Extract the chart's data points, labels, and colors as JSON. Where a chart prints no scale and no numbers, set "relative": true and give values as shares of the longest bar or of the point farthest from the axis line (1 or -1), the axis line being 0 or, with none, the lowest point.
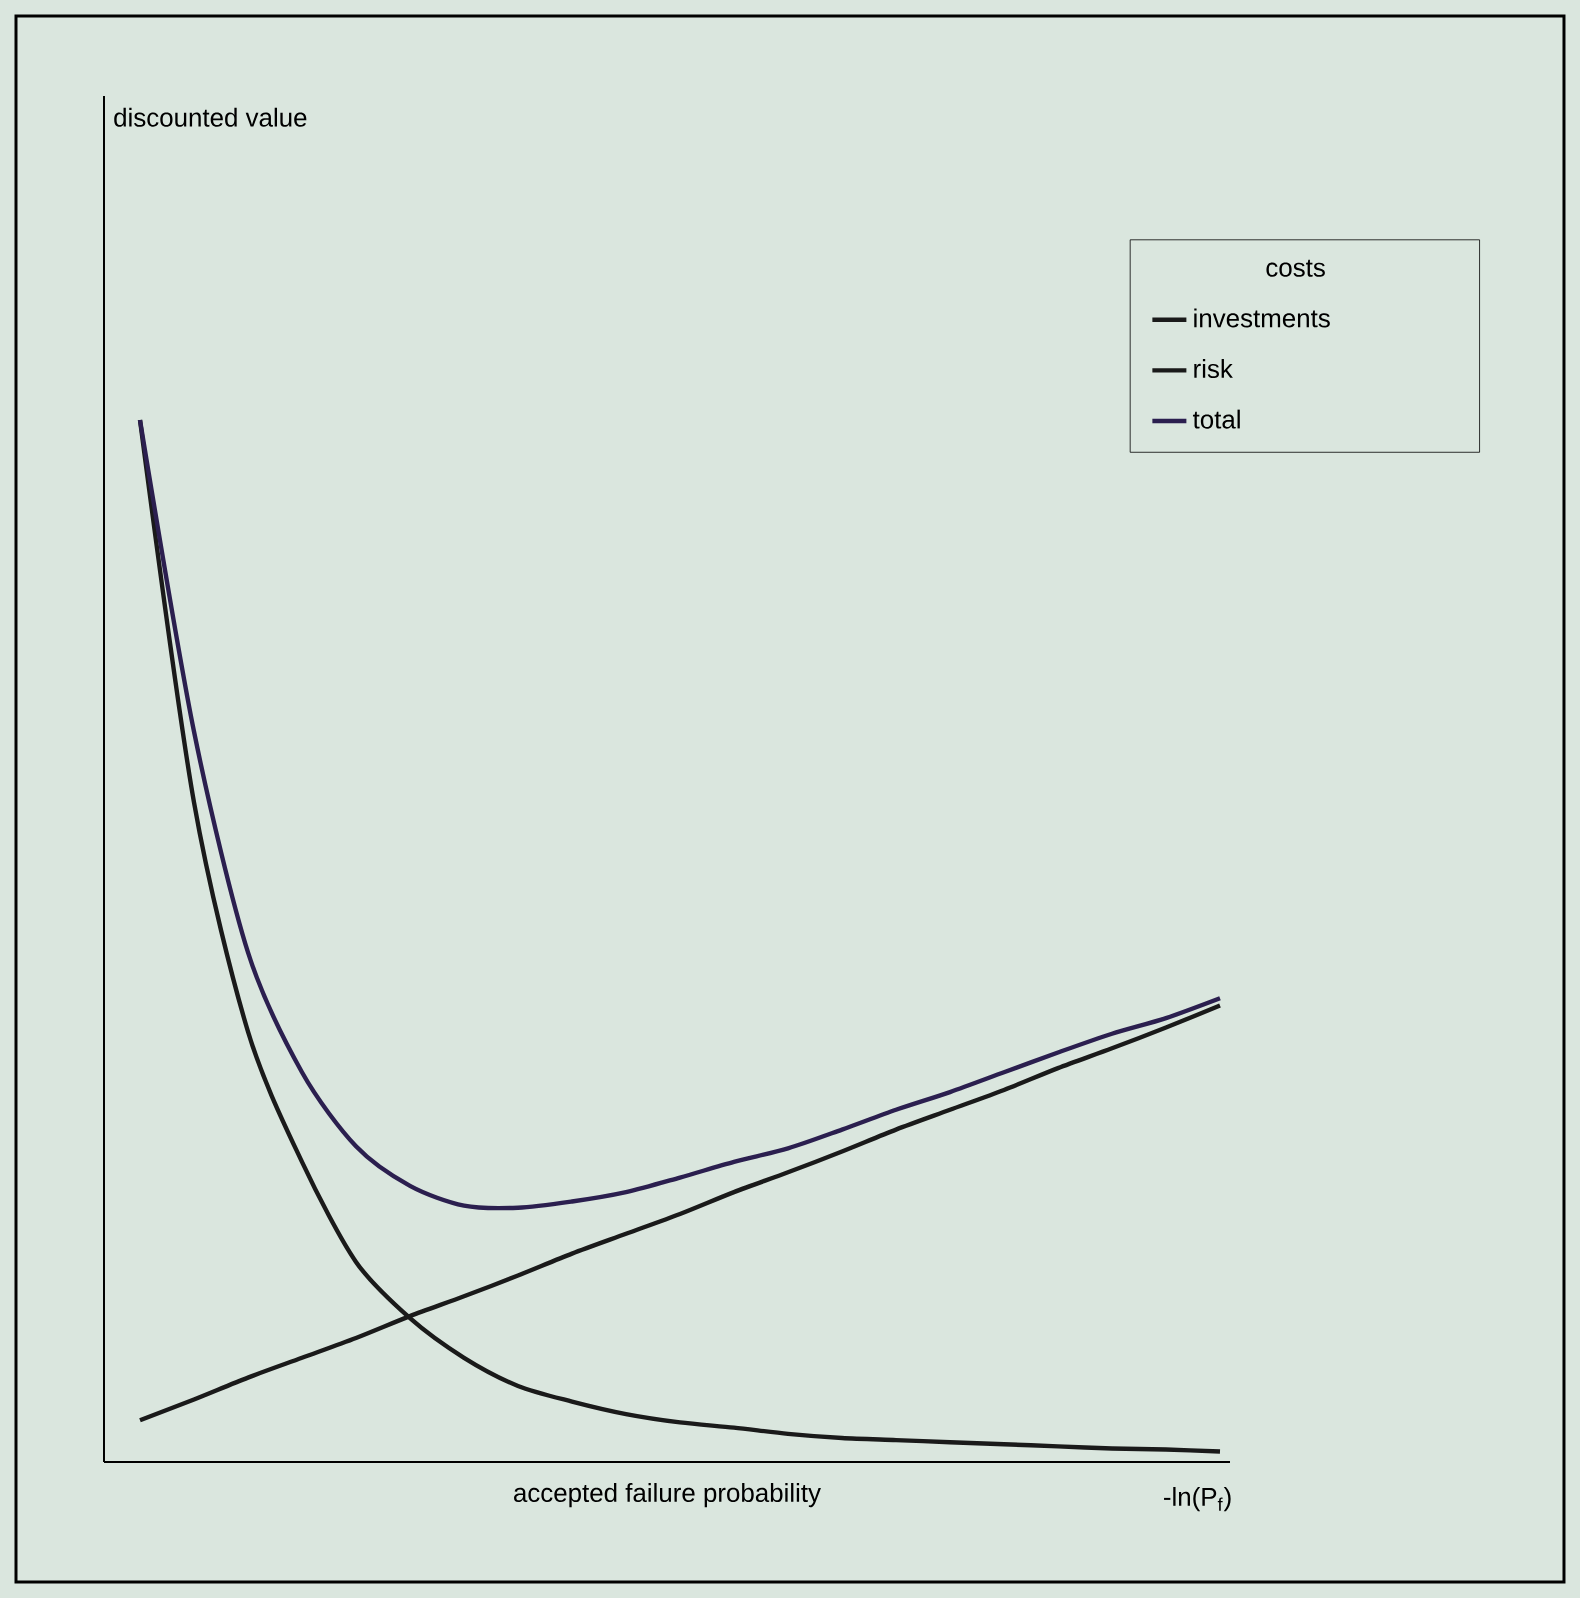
{
  "chart_data": {
    "type": "line",
    "relative": true,
    "xlabel": "accepted failure probability",
    "legend_title": "costs",
    "legend": "top right",
    "marker": "none",
    "line_style": "solid",
    "annotations": [
      "discounted value",
      "-ln(P$_{f}$)"
    ],
    "categories": [
      null,
      null,
      null,
      null,
      null,
      null,
      null,
      null,
      null,
      null,
      null,
      null,
      null,
      null,
      null,
      null,
      null,
      null,
      null,
      null,
      null
    ],
    "series": [
      {
        "name": "investments",
        "color": "#1a1a1a",
        "values": [
          0.04,
          0.06,
          0.081,
          0.1,
          0.119,
          0.14,
          0.159,
          0.179,
          0.2,
          0.219,
          0.238,
          0.259,
          0.278,
          0.298,
          0.319,
          0.338,
          0.357,
          0.378,
          0.397,
          0.417,
          0.438
        ]
      },
      {
        "name": "risk",
        "color": "#1a1a1a",
        "values": [
          1,
          0.633,
          0.413,
          0.288,
          0.192,
          0.138,
          0.1,
          0.073,
          0.058,
          0.046,
          0.038,
          0.033,
          0.027,
          0.023,
          0.021,
          0.019,
          0.017,
          0.015,
          0.013,
          0.012,
          0.01
        ]
      },
      {
        "name": "total",
        "color": "#2b1f4f",
        "values": [
          1,
          0.701,
          0.489,
          0.374,
          0.303,
          0.265,
          0.246,
          0.244,
          0.25,
          0.259,
          0.273,
          0.288,
          0.301,
          0.319,
          0.338,
          0.355,
          0.374,
          0.393,
          0.411,
          0.426,
          0.445
        ]
      }
    ]
  }
}
